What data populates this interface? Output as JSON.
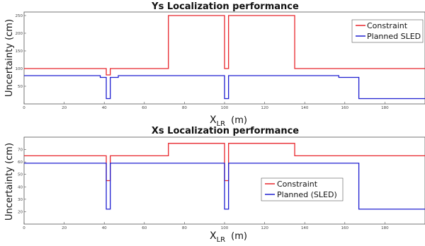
{
  "chart_data": [
    {
      "type": "line",
      "title": "Ys Localization performance",
      "xlabel": "X",
      "xlabel_sub": "LR",
      "xlabel_unit": "(m)",
      "ylabel": "Uncertainty (cm)",
      "xlim": [
        0,
        200
      ],
      "ylim": [
        0,
        260
      ],
      "xticks": [
        0,
        20,
        40,
        60,
        80,
        100,
        120,
        140,
        160,
        180
      ],
      "yticks": [
        50,
        100,
        150,
        200,
        250
      ],
      "legend_position": "top-right",
      "series": [
        {
          "name": "Constraint",
          "color": "#e8262c",
          "x": [
            0,
            41,
            41,
            43,
            43,
            72,
            72,
            100,
            100,
            102,
            102,
            135,
            135,
            200
          ],
          "y": [
            100,
            100,
            82,
            82,
            100,
            100,
            250,
            250,
            100,
            100,
            250,
            250,
            100,
            100
          ]
        },
        {
          "name": "Planned SLED",
          "color": "#1f1fd0",
          "x": [
            0,
            38,
            38,
            41,
            41,
            43,
            43,
            47,
            47,
            100,
            100,
            102,
            102,
            157,
            157,
            167,
            167,
            200
          ],
          "y": [
            80,
            80,
            75,
            75,
            15,
            15,
            75,
            75,
            80,
            80,
            15,
            15,
            80,
            80,
            75,
            75,
            15,
            15
          ]
        }
      ]
    },
    {
      "type": "line",
      "title": "Xs Localization performance",
      "xlabel": "X",
      "xlabel_sub": "LR",
      "xlabel_unit": "(m)",
      "ylabel": "Uncertainty (cm)",
      "xlim": [
        0,
        200
      ],
      "ylim": [
        10,
        80
      ],
      "xticks": [
        0,
        20,
        40,
        60,
        80,
        100,
        120,
        140,
        160,
        180
      ],
      "yticks": [
        20,
        30,
        40,
        50,
        60,
        70
      ],
      "legend_position": "center-right",
      "series": [
        {
          "name": "Constraint",
          "color": "#e8262c",
          "x": [
            0,
            41,
            41,
            43,
            43,
            72,
            72,
            100,
            100,
            102,
            102,
            135,
            135,
            200
          ],
          "y": [
            65,
            65,
            45,
            45,
            65,
            65,
            75,
            75,
            45,
            45,
            75,
            75,
            65,
            65
          ]
        },
        {
          "name": "Planned (SLED)",
          "color": "#1f1fd0",
          "x": [
            0,
            41,
            41,
            43,
            43,
            100,
            100,
            102,
            102,
            167,
            167,
            200
          ],
          "y": [
            59,
            59,
            22,
            22,
            59,
            59,
            22,
            22,
            59,
            59,
            22,
            22
          ]
        }
      ]
    }
  ]
}
